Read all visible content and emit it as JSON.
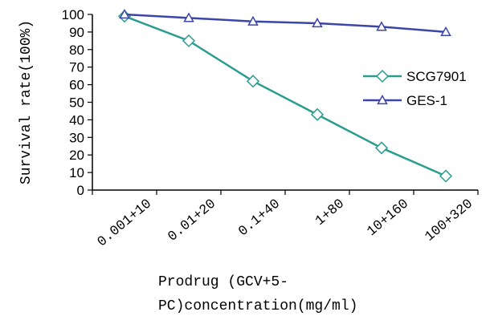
{
  "chart_data": {
    "type": "line",
    "title": "",
    "xlabel_lines": [
      "Prodrug (GCV+5-",
      "PC)concentration(mg/ml)"
    ],
    "ylabel": "Survival rate(100%)",
    "categories": [
      "0.001+10",
      "0.01+20",
      "0.1+40",
      "1+80",
      "10+160",
      "100+320"
    ],
    "y_ticks": [
      "0",
      "10",
      "20",
      "30",
      "40",
      "50",
      "60",
      "70",
      "80",
      "90",
      "100"
    ],
    "ylim": [
      0,
      100
    ],
    "grid": false,
    "legend_position": "right",
    "series": [
      {
        "name": "SCG7901",
        "marker": "diamond",
        "color": "#2a9d8f",
        "values": [
          99,
          85,
          62,
          43,
          24,
          8
        ]
      },
      {
        "name": "GES-1",
        "marker": "triangle",
        "color": "#3b46a8",
        "values": [
          100,
          98,
          96,
          95,
          93,
          90
        ]
      }
    ]
  }
}
